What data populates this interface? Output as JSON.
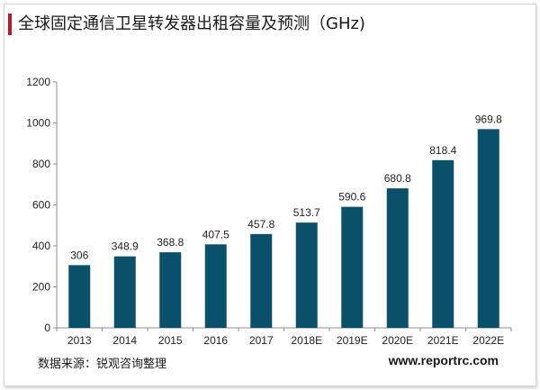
{
  "title": "全球固定通信卫星转发器出租容量及预测（GHz)",
  "source": "数据来源：锐观咨询整理",
  "website": "www.reportrc.com",
  "colors": {
    "bar": "#0b506b",
    "accent": "#c0162b"
  },
  "chart_data": {
    "type": "bar",
    "categories": [
      "2013",
      "2014",
      "2015",
      "2016",
      "2017",
      "2018E",
      "2019E",
      "2020E",
      "2021E",
      "2022E"
    ],
    "values": [
      306,
      348.9,
      368.8,
      407.5,
      457.8,
      513.7,
      590.6,
      680.8,
      818.4,
      969.8
    ],
    "value_labels": [
      "306",
      "348.9",
      "368.8",
      "407.5",
      "457.8",
      "513.7",
      "590.6",
      "680.8",
      "818.4",
      "969.8"
    ],
    "ylim": [
      0,
      1200
    ],
    "yticks": [
      0,
      200,
      400,
      600,
      800,
      1000,
      1200
    ],
    "grid": false,
    "legend": "none"
  }
}
